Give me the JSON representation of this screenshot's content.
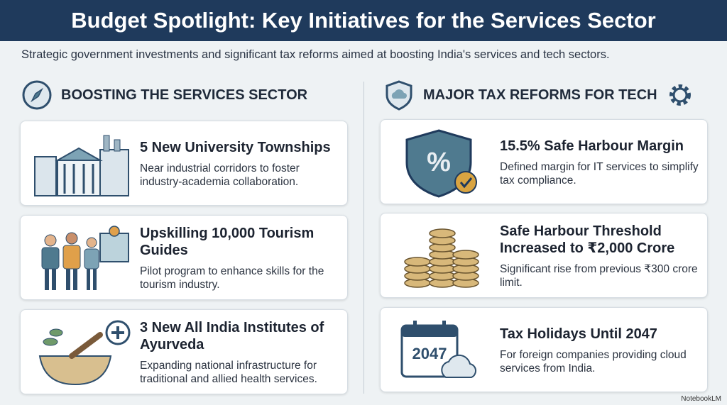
{
  "header": {
    "title": "Budget Spotlight: Key Initiatives for the Services Sector"
  },
  "subtitle": "Strategic government investments and significant tax reforms aimed at boosting India's services and tech sectors.",
  "sections": [
    {
      "heading": "BOOSTING THE SERVICES SECTOR",
      "cards": [
        {
          "title": "5 New University Townships",
          "description": "Near industrial corridors to foster industry-academia collaboration."
        },
        {
          "title": "Upskilling 10,000 Tourism Guides",
          "description": "Pilot program to enhance skills for the tourism industry."
        },
        {
          "title": "3 New All India Institutes of Ayurveda",
          "description": "Expanding national infrastructure for traditional and allied health services."
        }
      ]
    },
    {
      "heading": "MAJOR TAX REFORMS FOR TECH",
      "cards": [
        {
          "title": "15.5% Safe Harbour Margin",
          "description": "Defined margin for IT services to simplify tax compliance.",
          "icon_text": "%"
        },
        {
          "title": "Safe Harbour Threshold Increased to ₹2,000 Crore",
          "description": "Significant rise from previous ₹300 crore limit."
        },
        {
          "title": "Tax Holidays Until 2047",
          "description": "For foreign companies providing cloud services from India.",
          "icon_text": "2047"
        }
      ]
    }
  ],
  "footer": {
    "brand": "NotebookLM"
  }
}
